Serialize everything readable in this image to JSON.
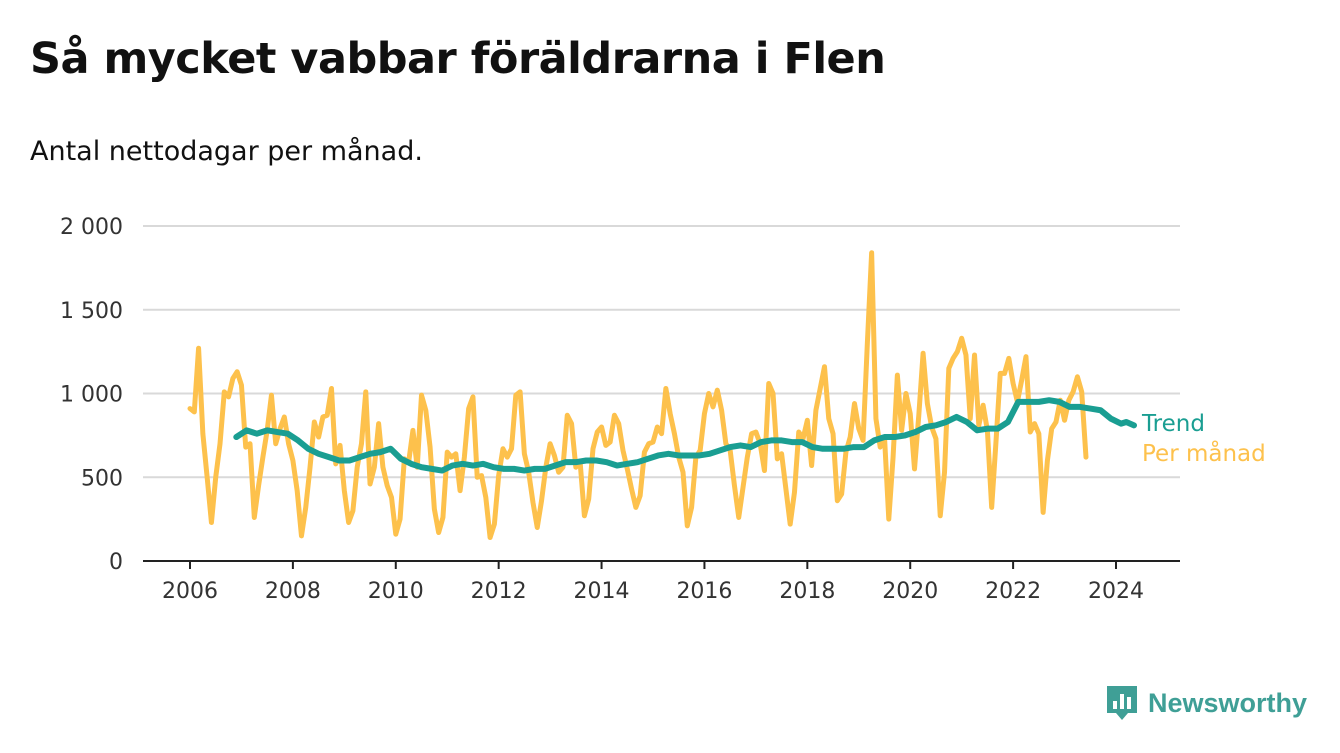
{
  "title": "Så mycket vabbar föräldrarna i Flen",
  "subtitle": "Antal nettodagar per månad.",
  "brand": {
    "name": "Newsworthy",
    "color": "#3f9f96"
  },
  "chart_data": {
    "type": "line",
    "xlim": [
      2006,
      2024.5
    ],
    "ylim": [
      0,
      2000
    ],
    "x_ticks": [
      {
        "value": 2006,
        "label": "2006"
      },
      {
        "value": 2008,
        "label": "2008"
      },
      {
        "value": 2010,
        "label": "2010"
      },
      {
        "value": 2012,
        "label": "2012"
      },
      {
        "value": 2014,
        "label": "2014"
      },
      {
        "value": 2016,
        "label": "2016"
      },
      {
        "value": 2018,
        "label": "2018"
      },
      {
        "value": 2020,
        "label": "2020"
      },
      {
        "value": 2022,
        "label": "2022"
      },
      {
        "value": 2024,
        "label": "2024"
      }
    ],
    "y_ticks": [
      {
        "value": 0,
        "label": "0"
      },
      {
        "value": 500,
        "label": "500"
      },
      {
        "value": 1000,
        "label": "1 000"
      },
      {
        "value": 1500,
        "label": "1 500"
      },
      {
        "value": 2000,
        "label": "2 000"
      }
    ],
    "grid": "horizontal",
    "series": [
      {
        "name": "Per månad",
        "color": "#fdc14c",
        "start": [
          2006,
          1
        ],
        "values": [
          910,
          890,
          1270,
          760,
          500,
          230,
          500,
          700,
          1010,
          980,
          1090,
          1130,
          1050,
          680,
          700,
          260,
          450,
          620,
          780,
          990,
          700,
          790,
          860,
          700,
          600,
          420,
          150,
          320,
          560,
          830,
          740,
          860,
          870,
          1030,
          580,
          690,
          420,
          230,
          300,
          560,
          700,
          1010,
          460,
          560,
          820,
          560,
          450,
          380,
          160,
          250,
          610,
          590,
          780,
          560,
          990,
          900,
          680,
          310,
          170,
          260,
          650,
          620,
          640,
          420,
          620,
          910,
          980,
          500,
          510,
          380,
          140,
          220,
          510,
          670,
          620,
          670,
          990,
          1010,
          640,
          530,
          350,
          200,
          360,
          560,
          700,
          630,
          530,
          560,
          870,
          820,
          560,
          590,
          270,
          370,
          670,
          770,
          800,
          690,
          710,
          870,
          820,
          660,
          550,
          430,
          320,
          390,
          650,
          700,
          710,
          800,
          760,
          1030,
          880,
          760,
          620,
          530,
          210,
          320,
          620,
          660,
          880,
          1000,
          920,
          1020,
          900,
          700,
          660,
          450,
          260,
          440,
          620,
          760,
          770,
          700,
          540,
          1060,
          1000,
          610,
          640,
          430,
          220,
          410,
          770,
          730,
          840,
          570,
          900,
          1030,
          1160,
          850,
          760,
          360,
          400,
          650,
          740,
          940,
          790,
          720,
          1300,
          1840,
          850,
          680,
          740,
          250,
          620,
          1110,
          780,
          1000,
          880,
          550,
          870,
          1240,
          940,
          800,
          730,
          270,
          530,
          1150,
          1210,
          1250,
          1330,
          1230,
          850,
          1230,
          810,
          930,
          780,
          320,
          710,
          1120,
          1120,
          1210,
          1060,
          950,
          1080,
          1220,
          770,
          820,
          760,
          290,
          600,
          790,
          830,
          960,
          840,
          960,
          1010,
          1100,
          1010,
          620
        ]
      },
      {
        "name": "Trend",
        "color": "#1a9e92",
        "points": [
          [
            2006.9,
            740
          ],
          [
            2007.1,
            780
          ],
          [
            2007.3,
            760
          ],
          [
            2007.5,
            780
          ],
          [
            2007.7,
            770
          ],
          [
            2007.9,
            760
          ],
          [
            2008.1,
            720
          ],
          [
            2008.3,
            670
          ],
          [
            2008.5,
            640
          ],
          [
            2008.7,
            620
          ],
          [
            2008.9,
            600
          ],
          [
            2009.1,
            600
          ],
          [
            2009.3,
            620
          ],
          [
            2009.5,
            640
          ],
          [
            2009.7,
            650
          ],
          [
            2009.9,
            670
          ],
          [
            2010.1,
            610
          ],
          [
            2010.3,
            580
          ],
          [
            2010.5,
            560
          ],
          [
            2010.7,
            550
          ],
          [
            2010.9,
            540
          ],
          [
            2011.1,
            570
          ],
          [
            2011.3,
            580
          ],
          [
            2011.5,
            570
          ],
          [
            2011.7,
            580
          ],
          [
            2011.9,
            560
          ],
          [
            2012.1,
            550
          ],
          [
            2012.3,
            550
          ],
          [
            2012.5,
            540
          ],
          [
            2012.7,
            550
          ],
          [
            2012.9,
            550
          ],
          [
            2013.1,
            570
          ],
          [
            2013.3,
            590
          ],
          [
            2013.5,
            590
          ],
          [
            2013.7,
            600
          ],
          [
            2013.9,
            600
          ],
          [
            2014.1,
            590
          ],
          [
            2014.3,
            570
          ],
          [
            2014.5,
            580
          ],
          [
            2014.7,
            590
          ],
          [
            2014.9,
            610
          ],
          [
            2015.1,
            630
          ],
          [
            2015.3,
            640
          ],
          [
            2015.5,
            630
          ],
          [
            2015.7,
            630
          ],
          [
            2015.9,
            630
          ],
          [
            2016.1,
            640
          ],
          [
            2016.3,
            660
          ],
          [
            2016.5,
            680
          ],
          [
            2016.7,
            690
          ],
          [
            2016.9,
            680
          ],
          [
            2017.1,
            710
          ],
          [
            2017.3,
            720
          ],
          [
            2017.5,
            720
          ],
          [
            2017.7,
            710
          ],
          [
            2017.9,
            710
          ],
          [
            2018.1,
            680
          ],
          [
            2018.3,
            670
          ],
          [
            2018.5,
            670
          ],
          [
            2018.7,
            670
          ],
          [
            2018.9,
            680
          ],
          [
            2019.1,
            680
          ],
          [
            2019.3,
            720
          ],
          [
            2019.5,
            740
          ],
          [
            2019.7,
            740
          ],
          [
            2019.9,
            750
          ],
          [
            2020.1,
            770
          ],
          [
            2020.3,
            800
          ],
          [
            2020.5,
            810
          ],
          [
            2020.7,
            830
          ],
          [
            2020.9,
            860
          ],
          [
            2021.1,
            830
          ],
          [
            2021.3,
            780
          ],
          [
            2021.5,
            790
          ],
          [
            2021.7,
            790
          ],
          [
            2021.9,
            830
          ],
          [
            2022.1,
            950
          ],
          [
            2022.3,
            950
          ],
          [
            2022.5,
            950
          ],
          [
            2022.7,
            960
          ],
          [
            2022.9,
            950
          ],
          [
            2023.1,
            920
          ],
          [
            2023.3,
            920
          ],
          [
            2023.5,
            910
          ],
          [
            2023.7,
            900
          ],
          [
            2023.9,
            850
          ],
          [
            2024.1,
            820
          ],
          [
            2024.2,
            830
          ],
          [
            2024.35,
            810
          ]
        ]
      }
    ]
  }
}
